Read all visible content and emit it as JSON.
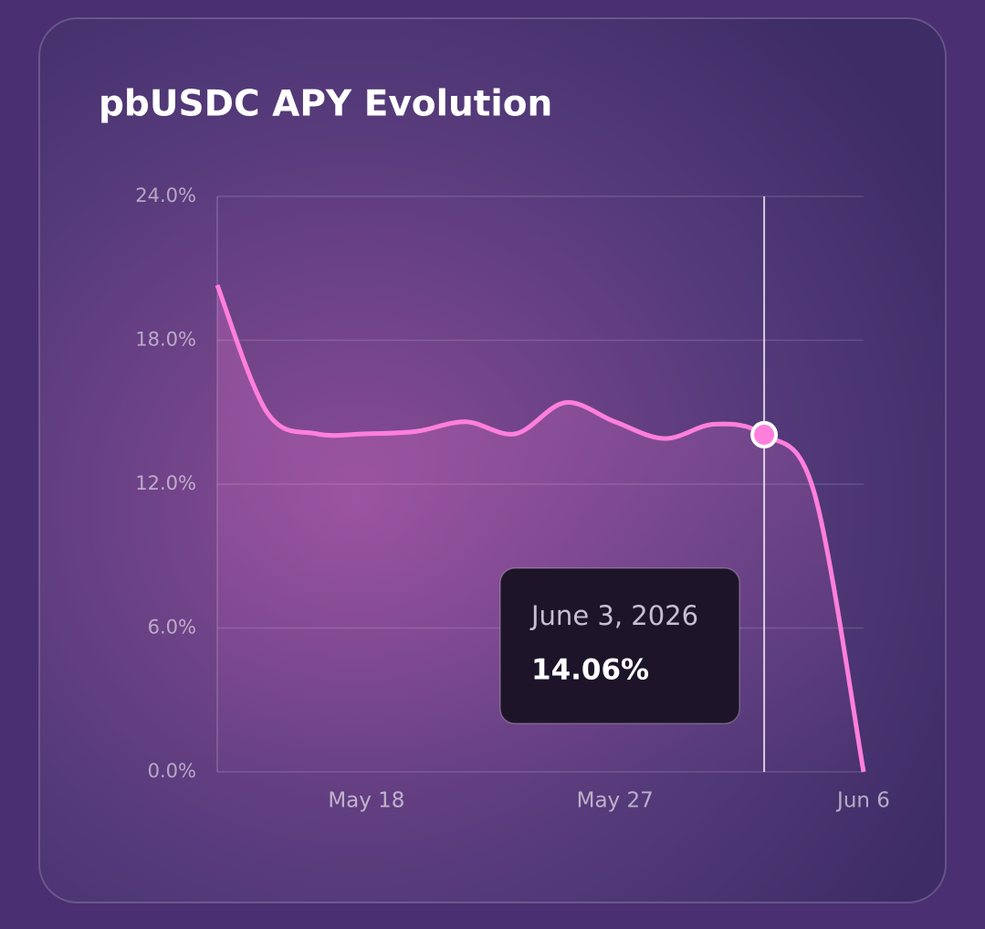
{
  "chart_data": {
    "type": "line",
    "title": "pbUSDC APY Evolution",
    "categories": [
      null,
      null,
      null,
      "May 18",
      null,
      null,
      null,
      null,
      "May 27",
      null,
      null,
      null,
      null,
      "Jun 6"
    ],
    "values": [
      20.3,
      15.0,
      14.1,
      14.1,
      14.2,
      14.6,
      14.1,
      15.4,
      14.6,
      13.9,
      14.5,
      14.06,
      11.7,
      0
    ],
    "color": "#ff7fdc",
    "ylim": [
      0,
      24
    ],
    "yticks": [
      {
        "value": 0,
        "label": "0.0%"
      },
      {
        "value": 6,
        "label": "6.0%"
      },
      {
        "value": 12,
        "label": "12.0%"
      },
      {
        "value": 18,
        "label": "18.0%"
      },
      {
        "value": 24,
        "label": "24.0%"
      }
    ],
    "grid": true,
    "tooltip": {
      "index": 11,
      "date": "June 3, 2026",
      "value": 14.06,
      "label": "14.06%"
    }
  }
}
